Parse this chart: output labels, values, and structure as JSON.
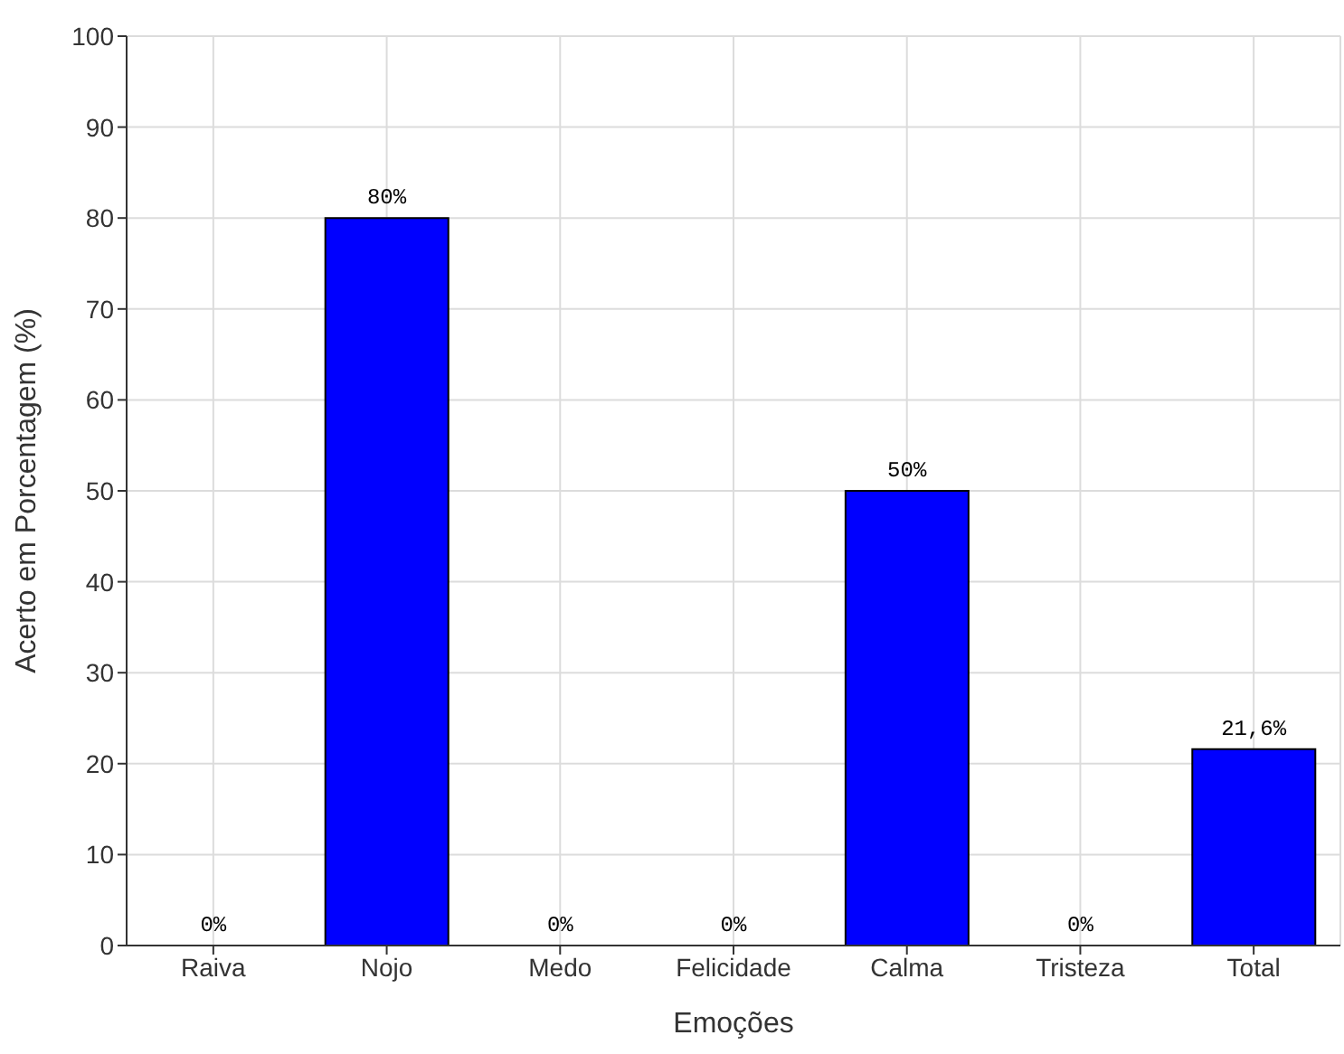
{
  "chart_data": {
    "type": "bar",
    "xlabel": "Emoções",
    "ylabel": "Acerto em Porcentagem (%)",
    "categories": [
      "Raiva",
      "Nojo",
      "Medo",
      "Felicidade",
      "Calma",
      "Tristeza",
      "Total"
    ],
    "values": [
      0,
      80,
      0,
      0,
      50,
      0,
      21.6
    ],
    "value_labels": [
      "0%",
      "80%",
      "0%",
      "0%",
      "50%",
      "0%",
      "21,6%"
    ],
    "color": "#0000ff",
    "ylim": [
      0,
      100
    ],
    "yticks": [
      0,
      10,
      20,
      30,
      40,
      50,
      60,
      70,
      80,
      90,
      100
    ],
    "grid": true
  }
}
